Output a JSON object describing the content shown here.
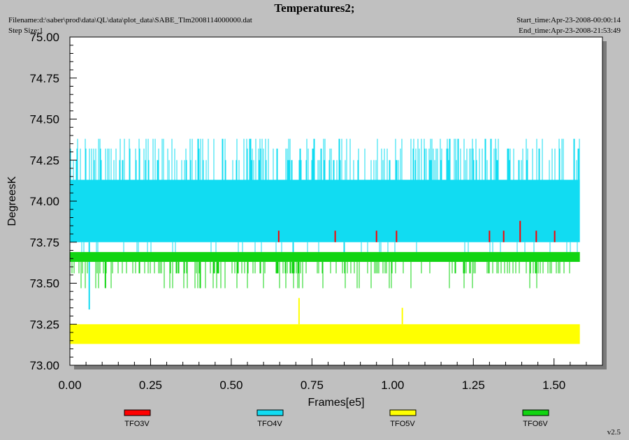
{
  "header": {
    "title": "Temperatures2;",
    "filename": "Filename:d:\\saber\\prod\\data\\QL\\data\\plot_data\\SABE_Tlm2008114000000.dat",
    "step_size": "Step Size:1",
    "start_time": "Start_time:Apr-23-2008-00:00:14",
    "end_time": "End_time:Apr-23-2008-21:53:49",
    "version": "v2.5"
  },
  "chart_data": {
    "type": "line",
    "title": "Temperatures2;",
    "xlabel": "Frames[e5]",
    "ylabel": "DegreesK",
    "xlim": [
      0,
      1.65
    ],
    "ylim": [
      73.0,
      75.0
    ],
    "x_ticks": [
      "0.00",
      "0.25",
      "0.50",
      "0.75",
      "1.00",
      "1.25",
      "1.50"
    ],
    "y_ticks": [
      "73.00",
      "73.25",
      "73.50",
      "73.75",
      "74.00",
      "74.25",
      "74.50",
      "74.75",
      "75.00"
    ],
    "grid": false,
    "legend_position": "bottom",
    "series": [
      {
        "name": "TFO3V",
        "color": "#ff0000",
        "x_range": [
          0,
          1.58
        ],
        "baseline": 73.75,
        "levels": [
          73.75,
          73.82
        ],
        "spikes": [
          {
            "x": 0.647,
            "value": 73.82
          },
          {
            "x": 0.822,
            "value": 73.82
          },
          {
            "x": 0.95,
            "value": 73.82
          },
          {
            "x": 1.012,
            "value": 73.82
          },
          {
            "x": 1.3,
            "value": 73.82
          },
          {
            "x": 1.344,
            "value": 73.82
          },
          {
            "x": 1.395,
            "value": 73.88
          },
          {
            "x": 1.445,
            "value": 73.82
          },
          {
            "x": 1.502,
            "value": 73.82
          }
        ]
      },
      {
        "name": "TFO4V",
        "color": "#11dcf2",
        "x_range": [
          0,
          1.58
        ],
        "levels": [
          73.69,
          73.75,
          73.82,
          73.88,
          73.94,
          74.0,
          74.07,
          74.13,
          74.19,
          74.25,
          74.32,
          74.38
        ],
        "typical_range": [
          73.75,
          74.13
        ],
        "outliers": [
          {
            "x": 0.06,
            "value": 73.34
          }
        ]
      },
      {
        "name": "TFO5V",
        "color": "#ffff00",
        "x_range": [
          0,
          1.58
        ],
        "levels": [
          73.13,
          73.19,
          73.25
        ],
        "typical_range": [
          73.13,
          73.25
        ],
        "outliers": [
          {
            "x": 0.71,
            "value": 73.41
          },
          {
            "x": 1.03,
            "value": 73.35
          }
        ]
      },
      {
        "name": "TFO6V",
        "color": "#11d411",
        "x_range": [
          0,
          1.58
        ],
        "levels": [
          73.47,
          73.56,
          73.63,
          73.69
        ],
        "typical_range": [
          73.63,
          73.69
        ],
        "outliers": [
          {
            "x": 0.11,
            "value": 73.47
          }
        ]
      }
    ]
  }
}
